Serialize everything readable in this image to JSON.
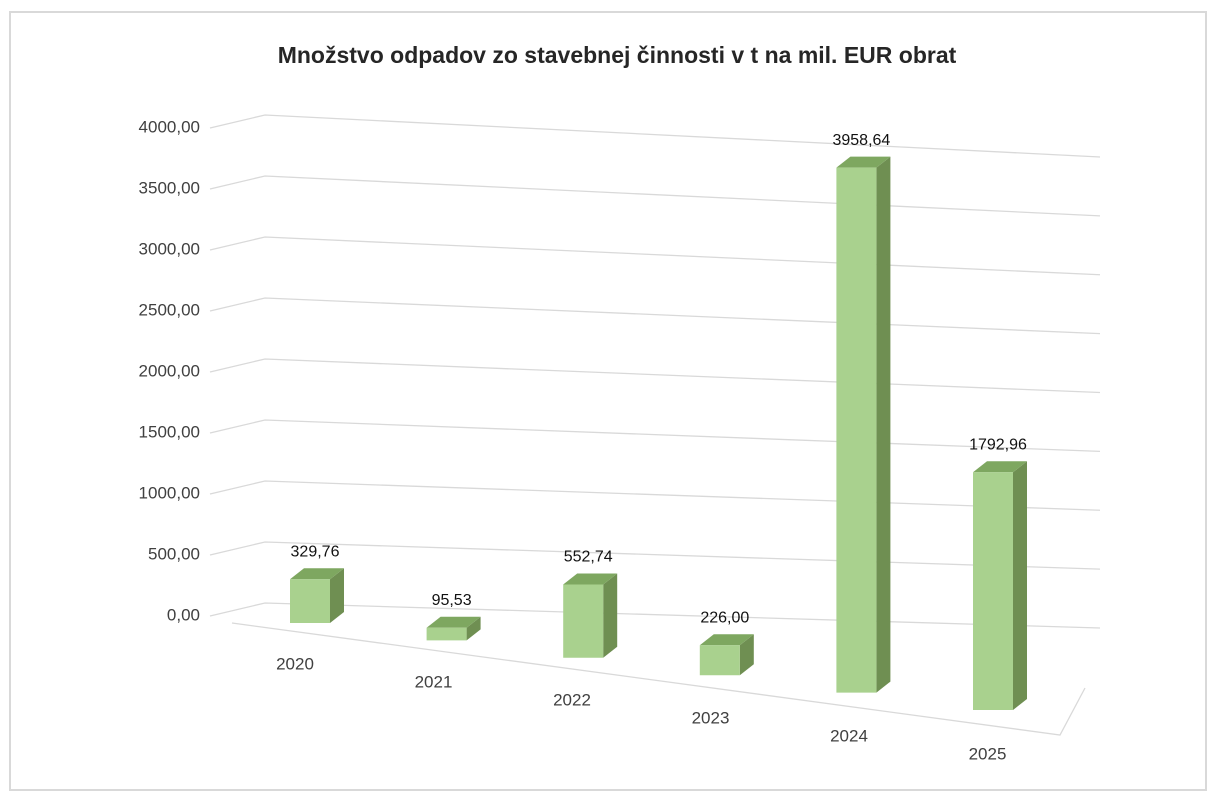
{
  "chart_data": {
    "type": "bar3d",
    "title": "Množstvo odpadov zo stavebnej činnosti v t na mil. EUR obrat",
    "categories": [
      "2020",
      "2021",
      "2022",
      "2023",
      "2024",
      "2025"
    ],
    "values": [
      329.76,
      95.53,
      552.74,
      226.0,
      3958.64,
      1792.96
    ],
    "value_labels": [
      "329,76",
      "95,53",
      "552,74",
      "226,00",
      "3958,64",
      "1792,96"
    ],
    "color": "#a9d18e",
    "ylim": [
      0,
      4000
    ],
    "yticks": [
      {
        "value": 0,
        "label": "0,00"
      },
      {
        "value": 500,
        "label": "500,00"
      },
      {
        "value": 1000,
        "label": "1000,00"
      },
      {
        "value": 1500,
        "label": "1500,00"
      },
      {
        "value": 2000,
        "label": "2000,00"
      },
      {
        "value": 2500,
        "label": "2500,00"
      },
      {
        "value": 3000,
        "label": "3000,00"
      },
      {
        "value": 3500,
        "label": "3500,00"
      },
      {
        "value": 4000,
        "label": "4000,00"
      }
    ],
    "grid": true
  }
}
